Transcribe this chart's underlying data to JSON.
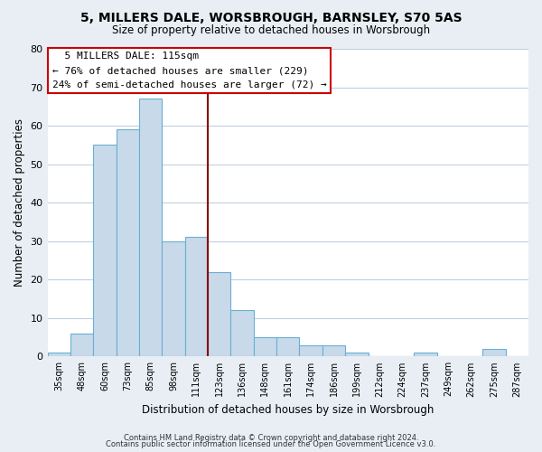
{
  "title": "5, MILLERS DALE, WORSBROUGH, BARNSLEY, S70 5AS",
  "subtitle": "Size of property relative to detached houses in Worsbrough",
  "xlabel": "Distribution of detached houses by size in Worsbrough",
  "ylabel": "Number of detached properties",
  "bin_labels": [
    "35sqm",
    "48sqm",
    "60sqm",
    "73sqm",
    "85sqm",
    "98sqm",
    "111sqm",
    "123sqm",
    "136sqm",
    "148sqm",
    "161sqm",
    "174sqm",
    "186sqm",
    "199sqm",
    "212sqm",
    "224sqm",
    "237sqm",
    "249sqm",
    "262sqm",
    "275sqm",
    "287sqm"
  ],
  "bar_heights": [
    1,
    6,
    55,
    59,
    67,
    30,
    31,
    22,
    12,
    5,
    5,
    3,
    3,
    1,
    0,
    0,
    1,
    0,
    0,
    2,
    0
  ],
  "bar_color": "#c8daea",
  "bar_edge_color": "#6aafd6",
  "ylim": [
    0,
    80
  ],
  "yticks": [
    0,
    10,
    20,
    30,
    40,
    50,
    60,
    70,
    80
  ],
  "vline_color": "#8b0000",
  "annotation_title": "5 MILLERS DALE: 115sqm",
  "annotation_line1": "← 76% of detached houses are smaller (229)",
  "annotation_line2": "24% of semi-detached houses are larger (72) →",
  "annotation_box_color": "#ffffff",
  "annotation_box_edge": "#cc0000",
  "footer1": "Contains HM Land Registry data © Crown copyright and database right 2024.",
  "footer2": "Contains public sector information licensed under the Open Government Licence v3.0.",
  "background_color": "#e8eef4",
  "plot_bg_color": "#ffffff",
  "grid_color": "#c0d0e0"
}
